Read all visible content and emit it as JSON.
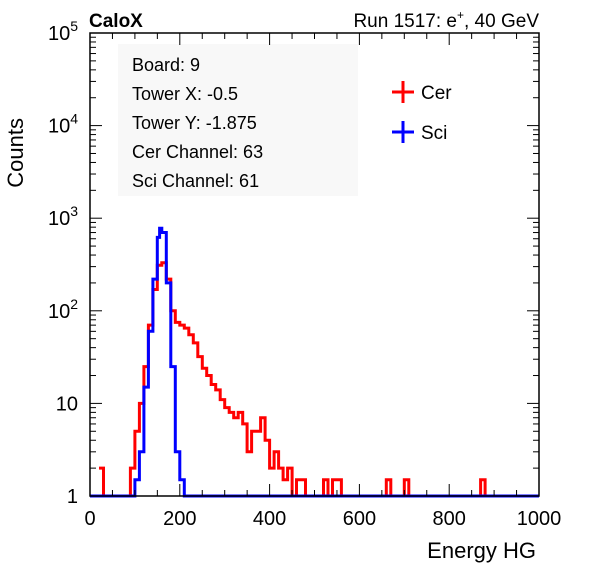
{
  "header": {
    "experiment": "CaloX",
    "run_prefix": "Run 1517: e",
    "run_sup": "+",
    "run_suffix": ", 40 GeV"
  },
  "info_box": [
    "Board: 9",
    "Tower X: -0.5",
    "Tower Y: -1.875",
    "Cer Channel: 63",
    "Sci Channel: 61"
  ],
  "chart_data": {
    "type": "line",
    "xlabel": "Energy HG",
    "ylabel": "Counts",
    "xlim": [
      0,
      1000
    ],
    "ylim": [
      1,
      100000
    ],
    "yscale": "log",
    "x_ticks": [
      "0",
      "200",
      "400",
      "600",
      "800",
      "1000"
    ],
    "y_ticks": [
      {
        "base": "1",
        "exp": ""
      },
      {
        "base": "10",
        "exp": ""
      },
      {
        "base": "10",
        "exp": "2"
      },
      {
        "base": "10",
        "exp": "3"
      },
      {
        "base": "10",
        "exp": "4"
      },
      {
        "base": "10",
        "exp": "5"
      }
    ],
    "legend_position": "top-right",
    "series": [
      {
        "name": "Cer",
        "color": "#ff0000",
        "points": [
          [
            20,
            2
          ],
          [
            30,
            1
          ],
          [
            40,
            1
          ],
          [
            50,
            1
          ],
          [
            60,
            1
          ],
          [
            70,
            1
          ],
          [
            80,
            1
          ],
          [
            90,
            2
          ],
          [
            100,
            5
          ],
          [
            110,
            10
          ],
          [
            120,
            25
          ],
          [
            130,
            70
          ],
          [
            140,
            170
          ],
          [
            150,
            310
          ],
          [
            160,
            330
          ],
          [
            170,
            220
          ],
          [
            180,
            100
          ],
          [
            190,
            75
          ],
          [
            200,
            70
          ],
          [
            210,
            65
          ],
          [
            220,
            55
          ],
          [
            230,
            45
          ],
          [
            240,
            32
          ],
          [
            250,
            24
          ],
          [
            260,
            20
          ],
          [
            270,
            16
          ],
          [
            280,
            14
          ],
          [
            290,
            11
          ],
          [
            300,
            9
          ],
          [
            310,
            8
          ],
          [
            320,
            7
          ],
          [
            330,
            8
          ],
          [
            340,
            6
          ],
          [
            350,
            3
          ],
          [
            360,
            5
          ],
          [
            370,
            5
          ],
          [
            380,
            7
          ],
          [
            390,
            4
          ],
          [
            400,
            2
          ],
          [
            410,
            3
          ],
          [
            420,
            2
          ],
          [
            430,
            1.5
          ],
          [
            440,
            2
          ],
          [
            450,
            1
          ],
          [
            460,
            1.5
          ],
          [
            470,
            1.5
          ],
          [
            480,
            1
          ],
          [
            500,
            1
          ],
          [
            520,
            1.5
          ],
          [
            530,
            1
          ],
          [
            540,
            1.5
          ],
          [
            550,
            1.5
          ],
          [
            560,
            1
          ],
          [
            660,
            1.5
          ],
          [
            670,
            1
          ],
          [
            680,
            1
          ],
          [
            700,
            1.5
          ],
          [
            710,
            1
          ],
          [
            870,
            1.5
          ],
          [
            880,
            1
          ],
          [
            1000,
            1
          ]
        ]
      },
      {
        "name": "Sci",
        "color": "#0000ff",
        "points": [
          [
            0,
            1
          ],
          [
            90,
            1
          ],
          [
            100,
            1.5
          ],
          [
            110,
            3
          ],
          [
            120,
            15
          ],
          [
            130,
            60
          ],
          [
            140,
            220
          ],
          [
            150,
            620
          ],
          [
            155,
            780
          ],
          [
            160,
            700
          ],
          [
            170,
            200
          ],
          [
            180,
            25
          ],
          [
            190,
            3
          ],
          [
            200,
            1.5
          ],
          [
            210,
            1
          ],
          [
            1000,
            1
          ]
        ]
      }
    ]
  }
}
